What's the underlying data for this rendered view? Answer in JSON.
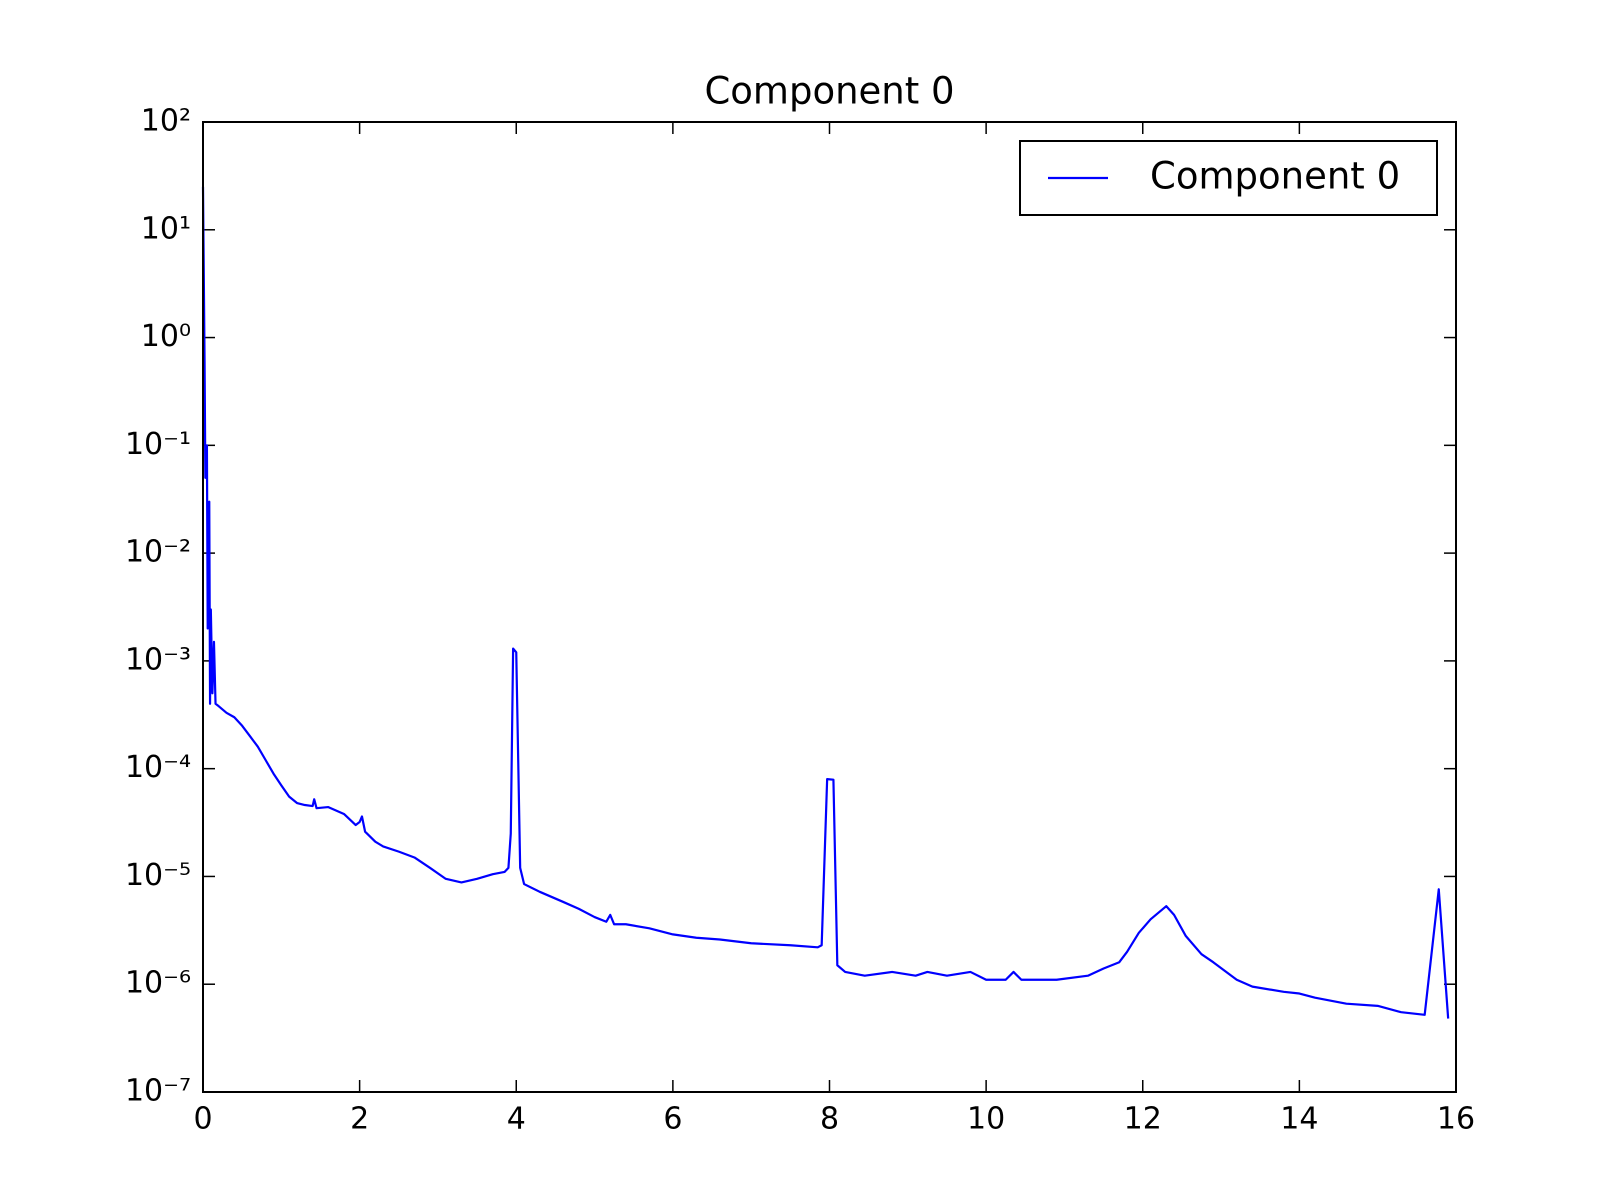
{
  "chart_data": {
    "type": "line",
    "title": "Component 0",
    "log_y": true,
    "grid": false,
    "legend": "upper right",
    "xlim": [
      0,
      16
    ],
    "xticks": [
      0,
      2,
      4,
      6,
      8,
      10,
      12,
      14,
      16
    ],
    "ylim": [
      1e-07,
      100
    ],
    "yticks": [
      {
        "value": 1e-07,
        "label": "10⁻⁷"
      },
      {
        "value": 1e-06,
        "label": "10⁻⁶"
      },
      {
        "value": 1e-05,
        "label": "10⁻⁵"
      },
      {
        "value": 0.0001,
        "label": "10⁻⁴"
      },
      {
        "value": 0.001,
        "label": "10⁻³"
      },
      {
        "value": 0.01,
        "label": "10⁻²"
      },
      {
        "value": 0.1,
        "label": "10⁻¹"
      },
      {
        "value": 1,
        "label": "10⁰"
      },
      {
        "value": 10,
        "label": "10¹"
      },
      {
        "value": 100,
        "label": "10²"
      }
    ],
    "x": [
      0.0,
      0.02,
      0.03,
      0.05,
      0.06,
      0.08,
      0.09,
      0.1,
      0.12,
      0.14,
      0.16,
      0.2,
      0.3,
      0.4,
      0.5,
      0.6,
      0.7,
      0.8,
      0.9,
      1.0,
      1.1,
      1.2,
      1.3,
      1.4,
      1.42,
      1.45,
      1.6,
      1.8,
      1.95,
      2.0,
      2.03,
      2.07,
      2.2,
      2.3,
      2.5,
      2.7,
      2.9,
      3.1,
      3.3,
      3.5,
      3.7,
      3.85,
      3.9,
      3.93,
      3.96,
      4.0,
      4.05,
      4.1,
      4.3,
      4.6,
      4.8,
      5.0,
      5.15,
      5.2,
      5.25,
      5.4,
      5.7,
      6.0,
      6.3,
      6.6,
      7.0,
      7.5,
      7.85,
      7.9,
      7.97,
      8.05,
      8.1,
      8.2,
      8.45,
      8.8,
      9.1,
      9.25,
      9.5,
      9.8,
      10.0,
      10.25,
      10.35,
      10.45,
      10.9,
      11.3,
      11.5,
      11.7,
      11.8,
      11.95,
      12.1,
      12.3,
      12.4,
      12.55,
      12.75,
      12.9,
      13.2,
      13.4,
      13.8,
      14.0,
      14.2,
      14.6,
      15.0,
      15.3,
      15.6,
      15.78,
      15.9
    ],
    "series": [
      {
        "name": "Component 0",
        "color": "#0000ff",
        "values": [
          25,
          0.6,
          0.05,
          0.1,
          0.002,
          0.03,
          0.0004,
          0.003,
          0.0005,
          0.0015,
          0.0004,
          0.00038,
          0.00033,
          0.0003,
          0.00025,
          0.0002,
          0.00016,
          0.00012,
          9e-05,
          7e-05,
          5.5e-05,
          4.8e-05,
          4.6e-05,
          4.5e-05,
          5.2e-05,
          4.3e-05,
          4.4e-05,
          3.8e-05,
          3e-05,
          3.2e-05,
          3.6e-05,
          2.6e-05,
          2.1e-05,
          1.9e-05,
          1.7e-05,
          1.5e-05,
          1.2e-05,
          9.5e-06,
          8.8e-06,
          9.5e-06,
          1.05e-05,
          1.1e-05,
          1.2e-05,
          2.5e-05,
          0.0013,
          0.0012,
          1.2e-05,
          8.5e-06,
          7.2e-06,
          5.8e-06,
          5e-06,
          4.2e-06,
          3.8e-06,
          4.4e-06,
          3.6e-06,
          3.6e-06,
          3.3e-06,
          2.9e-06,
          2.7e-06,
          2.6e-06,
          2.4e-06,
          2.3e-06,
          2.2e-06,
          2.3e-06,
          8e-05,
          7.9e-05,
          1.5e-06,
          1.3e-06,
          1.2e-06,
          1.3e-06,
          1.2e-06,
          1.3e-06,
          1.2e-06,
          1.3e-06,
          1.1e-06,
          1.1e-06,
          1.3e-06,
          1.1e-06,
          1.1e-06,
          1.2e-06,
          1.4e-06,
          1.6e-06,
          2e-06,
          3e-06,
          4e-06,
          5.3e-06,
          4.4e-06,
          2.8e-06,
          1.9e-06,
          1.6e-06,
          1.1e-06,
          9.5e-07,
          8.5e-07,
          8.2e-07,
          7.5e-07,
          6.6e-07,
          6.3e-07,
          5.5e-07,
          5.2e-07,
          7.6e-06,
          4.8e-07
        ]
      }
    ]
  }
}
